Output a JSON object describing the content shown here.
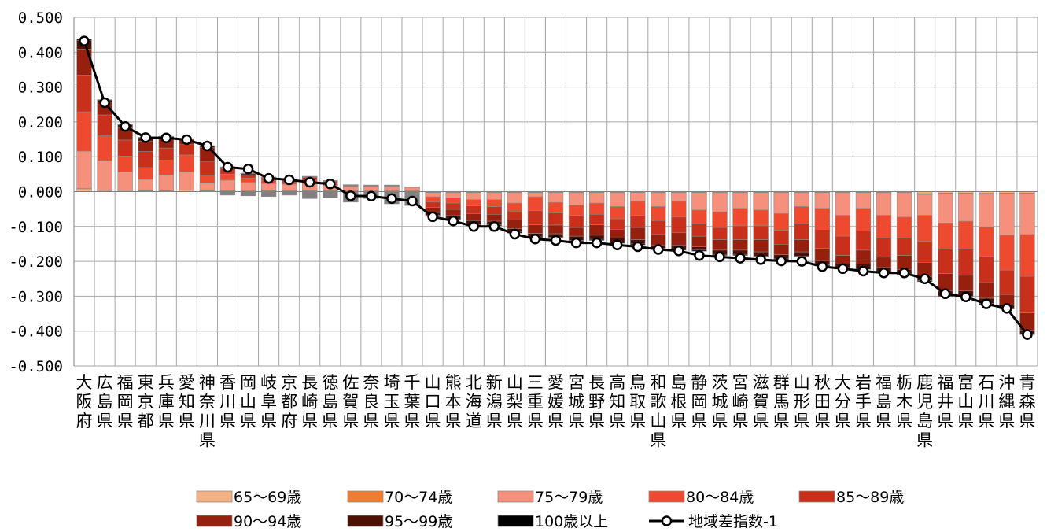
{
  "chart_data": {
    "type": "bar",
    "stacked": true,
    "grid": true,
    "legend_placement": "bottom",
    "ylim": [
      -0.5,
      0.5
    ],
    "yticks": [
      "0.500",
      "0.400",
      "0.300",
      "0.200",
      "0.100",
      "0.000",
      "-0.100",
      "-0.200",
      "-0.300",
      "-0.400",
      "-0.500"
    ],
    "categories": [
      "大阪府",
      "広島県",
      "福岡県",
      "東京都",
      "兵庫県",
      "愛知県",
      "神奈川県",
      "香川県",
      "岡山県",
      "岐阜県",
      "京都府",
      "長崎県",
      "徳島県",
      "佐賀県",
      "奈良県",
      "埼玉県",
      "千葉県",
      "山口県",
      "熊本県",
      "北海道",
      "新潟県",
      "山梨県",
      "三重県",
      "愛媛県",
      "宮城県",
      "長野県",
      "高知県",
      "鳥取県",
      "和歌山県",
      "島根県",
      "静岡県",
      "茨城県",
      "宮崎県",
      "滋賀県",
      "群馬県",
      "山形県",
      "秋田県",
      "大分県",
      "岩手県",
      "福島県",
      "栃木県",
      "鹿児島県",
      "福井県",
      "富山県",
      "石川県",
      "沖縄県",
      "青森県"
    ],
    "series": [
      {
        "name": "65〜69歳",
        "color": "#f4b183",
        "values": [
          0.008,
          0.003,
          0.003,
          0.002,
          0.002,
          0.004,
          0.002,
          0.002,
          0.001,
          0.002,
          0.002,
          0.002,
          0.002,
          0.001,
          0.001,
          0.001,
          0.001,
          -0.002,
          -0.002,
          -0.002,
          -0.002,
          -0.002,
          -0.002,
          -0.002,
          -0.002,
          -0.002,
          -0.002,
          -0.002,
          -0.002,
          -0.002,
          -0.002,
          -0.002,
          -0.002,
          -0.002,
          -0.002,
          -0.002,
          -0.002,
          -0.002,
          -0.002,
          -0.002,
          -0.002,
          -0.006,
          -0.004,
          -0.004,
          -0.005,
          -0.004,
          -0.004
        ]
      },
      {
        "name": "70〜74歳",
        "color": "#ed7d31",
        "values": [
          0.001,
          0.001,
          0.001,
          0.001,
          0.001,
          0.001,
          0.001,
          0.001,
          0.001,
          0.001,
          0.001,
          0.001,
          0.001,
          0.001,
          0.001,
          0.001,
          0.001,
          -0.001,
          -0.001,
          -0.001,
          -0.001,
          -0.001,
          -0.001,
          -0.001,
          -0.001,
          -0.001,
          -0.001,
          -0.001,
          -0.001,
          -0.001,
          -0.001,
          -0.001,
          -0.001,
          -0.001,
          -0.001,
          -0.001,
          -0.001,
          -0.001,
          -0.001,
          -0.001,
          -0.001,
          -0.002,
          -0.001,
          -0.001,
          -0.001,
          -0.001,
          -0.001
        ]
      },
      {
        "name": "75〜79歳",
        "color": "#f4907c",
        "values": [
          0.107,
          0.085,
          0.052,
          0.032,
          0.045,
          0.052,
          0.022,
          0.03,
          0.025,
          0.02,
          0.018,
          0.02,
          0.015,
          0.012,
          0.012,
          0.012,
          0.01,
          -0.012,
          -0.015,
          -0.02,
          -0.02,
          -0.03,
          -0.012,
          -0.028,
          -0.035,
          -0.03,
          -0.04,
          -0.025,
          -0.04,
          -0.025,
          -0.05,
          -0.055,
          -0.045,
          -0.05,
          -0.06,
          -0.04,
          -0.045,
          -0.065,
          -0.045,
          -0.065,
          -0.07,
          -0.06,
          -0.085,
          -0.08,
          -0.095,
          -0.12,
          -0.118
        ]
      },
      {
        "name": "80〜84歳",
        "color": "#ee4a2f",
        "values": [
          0.113,
          0.071,
          0.046,
          0.034,
          0.042,
          0.048,
          0.022,
          0.017,
          0.012,
          0.01,
          0.005,
          0.01,
          0.006,
          0.002,
          0.002,
          0.002,
          0.002,
          -0.015,
          -0.015,
          -0.018,
          -0.02,
          -0.023,
          -0.04,
          -0.03,
          -0.03,
          -0.032,
          -0.035,
          -0.04,
          -0.04,
          -0.045,
          -0.04,
          -0.045,
          -0.05,
          -0.045,
          -0.048,
          -0.05,
          -0.06,
          -0.06,
          -0.065,
          -0.065,
          -0.06,
          -0.075,
          -0.075,
          -0.08,
          -0.085,
          -0.1,
          -0.12
        ]
      },
      {
        "name": "85〜89歳",
        "color": "#c9301c",
        "values": [
          0.105,
          0.06,
          0.046,
          0.046,
          0.035,
          0.03,
          0.04,
          0.015,
          0.008,
          0.005,
          0.005,
          0.008,
          0.005,
          0.002,
          0.001,
          0.001,
          0.0,
          -0.015,
          -0.018,
          -0.022,
          -0.022,
          -0.025,
          -0.04,
          -0.035,
          -0.035,
          -0.03,
          -0.03,
          -0.035,
          -0.04,
          -0.045,
          -0.035,
          -0.035,
          -0.04,
          -0.04,
          -0.04,
          -0.045,
          -0.055,
          -0.055,
          -0.055,
          -0.055,
          -0.05,
          -0.06,
          -0.07,
          -0.075,
          -0.075,
          -0.07,
          -0.105
        ]
      },
      {
        "name": "90〜94歳",
        "color": "#961f0e",
        "values": [
          0.075,
          0.037,
          0.036,
          0.03,
          0.027,
          0.015,
          0.04,
          0.005,
          0.005,
          0.003,
          0.003,
          0.002,
          0.002,
          0.001,
          0.001,
          0.001,
          0.0,
          -0.015,
          -0.018,
          -0.02,
          -0.02,
          -0.025,
          -0.025,
          -0.025,
          -0.025,
          -0.03,
          -0.025,
          -0.035,
          -0.03,
          -0.035,
          -0.03,
          -0.03,
          -0.03,
          -0.035,
          -0.03,
          -0.035,
          -0.035,
          -0.025,
          -0.04,
          -0.03,
          -0.04,
          -0.04,
          -0.05,
          -0.045,
          -0.045,
          -0.03,
          -0.05
        ]
      },
      {
        "name": "95〜99歳",
        "color": "#4d1005",
        "values": [
          0.025,
          0.006,
          0.008,
          0.01,
          0.006,
          0.002,
          0.004,
          0.001,
          0.001,
          0.001,
          0.001,
          0.001,
          0.001,
          0.001,
          0.001,
          0.001,
          0.0,
          -0.008,
          -0.01,
          -0.012,
          -0.01,
          -0.01,
          -0.01,
          -0.01,
          -0.012,
          -0.012,
          -0.012,
          -0.012,
          -0.01,
          -0.012,
          -0.01,
          -0.012,
          -0.012,
          -0.012,
          -0.012,
          -0.012,
          -0.012,
          -0.01,
          -0.012,
          -0.012,
          -0.012,
          -0.012,
          -0.015,
          -0.015,
          -0.015,
          -0.01,
          -0.01
        ]
      },
      {
        "name": "100歳以上",
        "color": "#000000",
        "values": [
          0.003,
          0.001,
          0.001,
          0.001,
          0.001,
          0.0,
          0.001,
          0.0,
          0.0,
          0.0,
          0.0,
          0.0,
          0.0,
          0.0,
          0.0,
          0.0,
          0.0,
          -0.003,
          -0.003,
          -0.003,
          -0.003,
          -0.003,
          -0.003,
          -0.003,
          -0.003,
          -0.003,
          -0.003,
          -0.003,
          -0.003,
          -0.003,
          -0.003,
          -0.003,
          -0.003,
          -0.003,
          -0.003,
          -0.003,
          -0.003,
          -0.003,
          -0.003,
          -0.003,
          -0.003,
          -0.003,
          -0.003,
          -0.003,
          -0.003,
          -0.002,
          -0.002
        ]
      },
      {
        "name": "",
        "color": "#808080",
        "values": [
          0,
          0,
          0,
          0,
          0,
          0,
          0,
          -0.01,
          -0.012,
          -0.014,
          -0.01,
          -0.02,
          -0.018,
          -0.03,
          -0.02,
          -0.035,
          -0.04,
          0,
          0,
          0,
          0,
          0,
          0,
          0,
          0,
          0,
          0,
          0,
          0,
          0,
          0,
          0,
          0,
          0,
          0,
          0,
          0,
          0,
          0,
          0,
          0,
          0,
          0,
          0,
          0,
          0,
          0
        ]
      }
    ],
    "line": {
      "name": "地域差指数-1",
      "color": "#000000",
      "values": [
        0.432,
        0.255,
        0.187,
        0.155,
        0.154,
        0.149,
        0.131,
        0.07,
        0.065,
        0.038,
        0.034,
        0.027,
        0.022,
        -0.012,
        -0.013,
        -0.02,
        -0.027,
        -0.072,
        -0.084,
        -0.1,
        -0.1,
        -0.122,
        -0.136,
        -0.14,
        -0.147,
        -0.147,
        -0.153,
        -0.158,
        -0.166,
        -0.17,
        -0.183,
        -0.187,
        -0.191,
        -0.195,
        -0.199,
        -0.2,
        -0.215,
        -0.221,
        -0.228,
        -0.233,
        -0.233,
        -0.25,
        -0.293,
        -0.302,
        -0.322,
        -0.335,
        -0.41
      ]
    }
  }
}
